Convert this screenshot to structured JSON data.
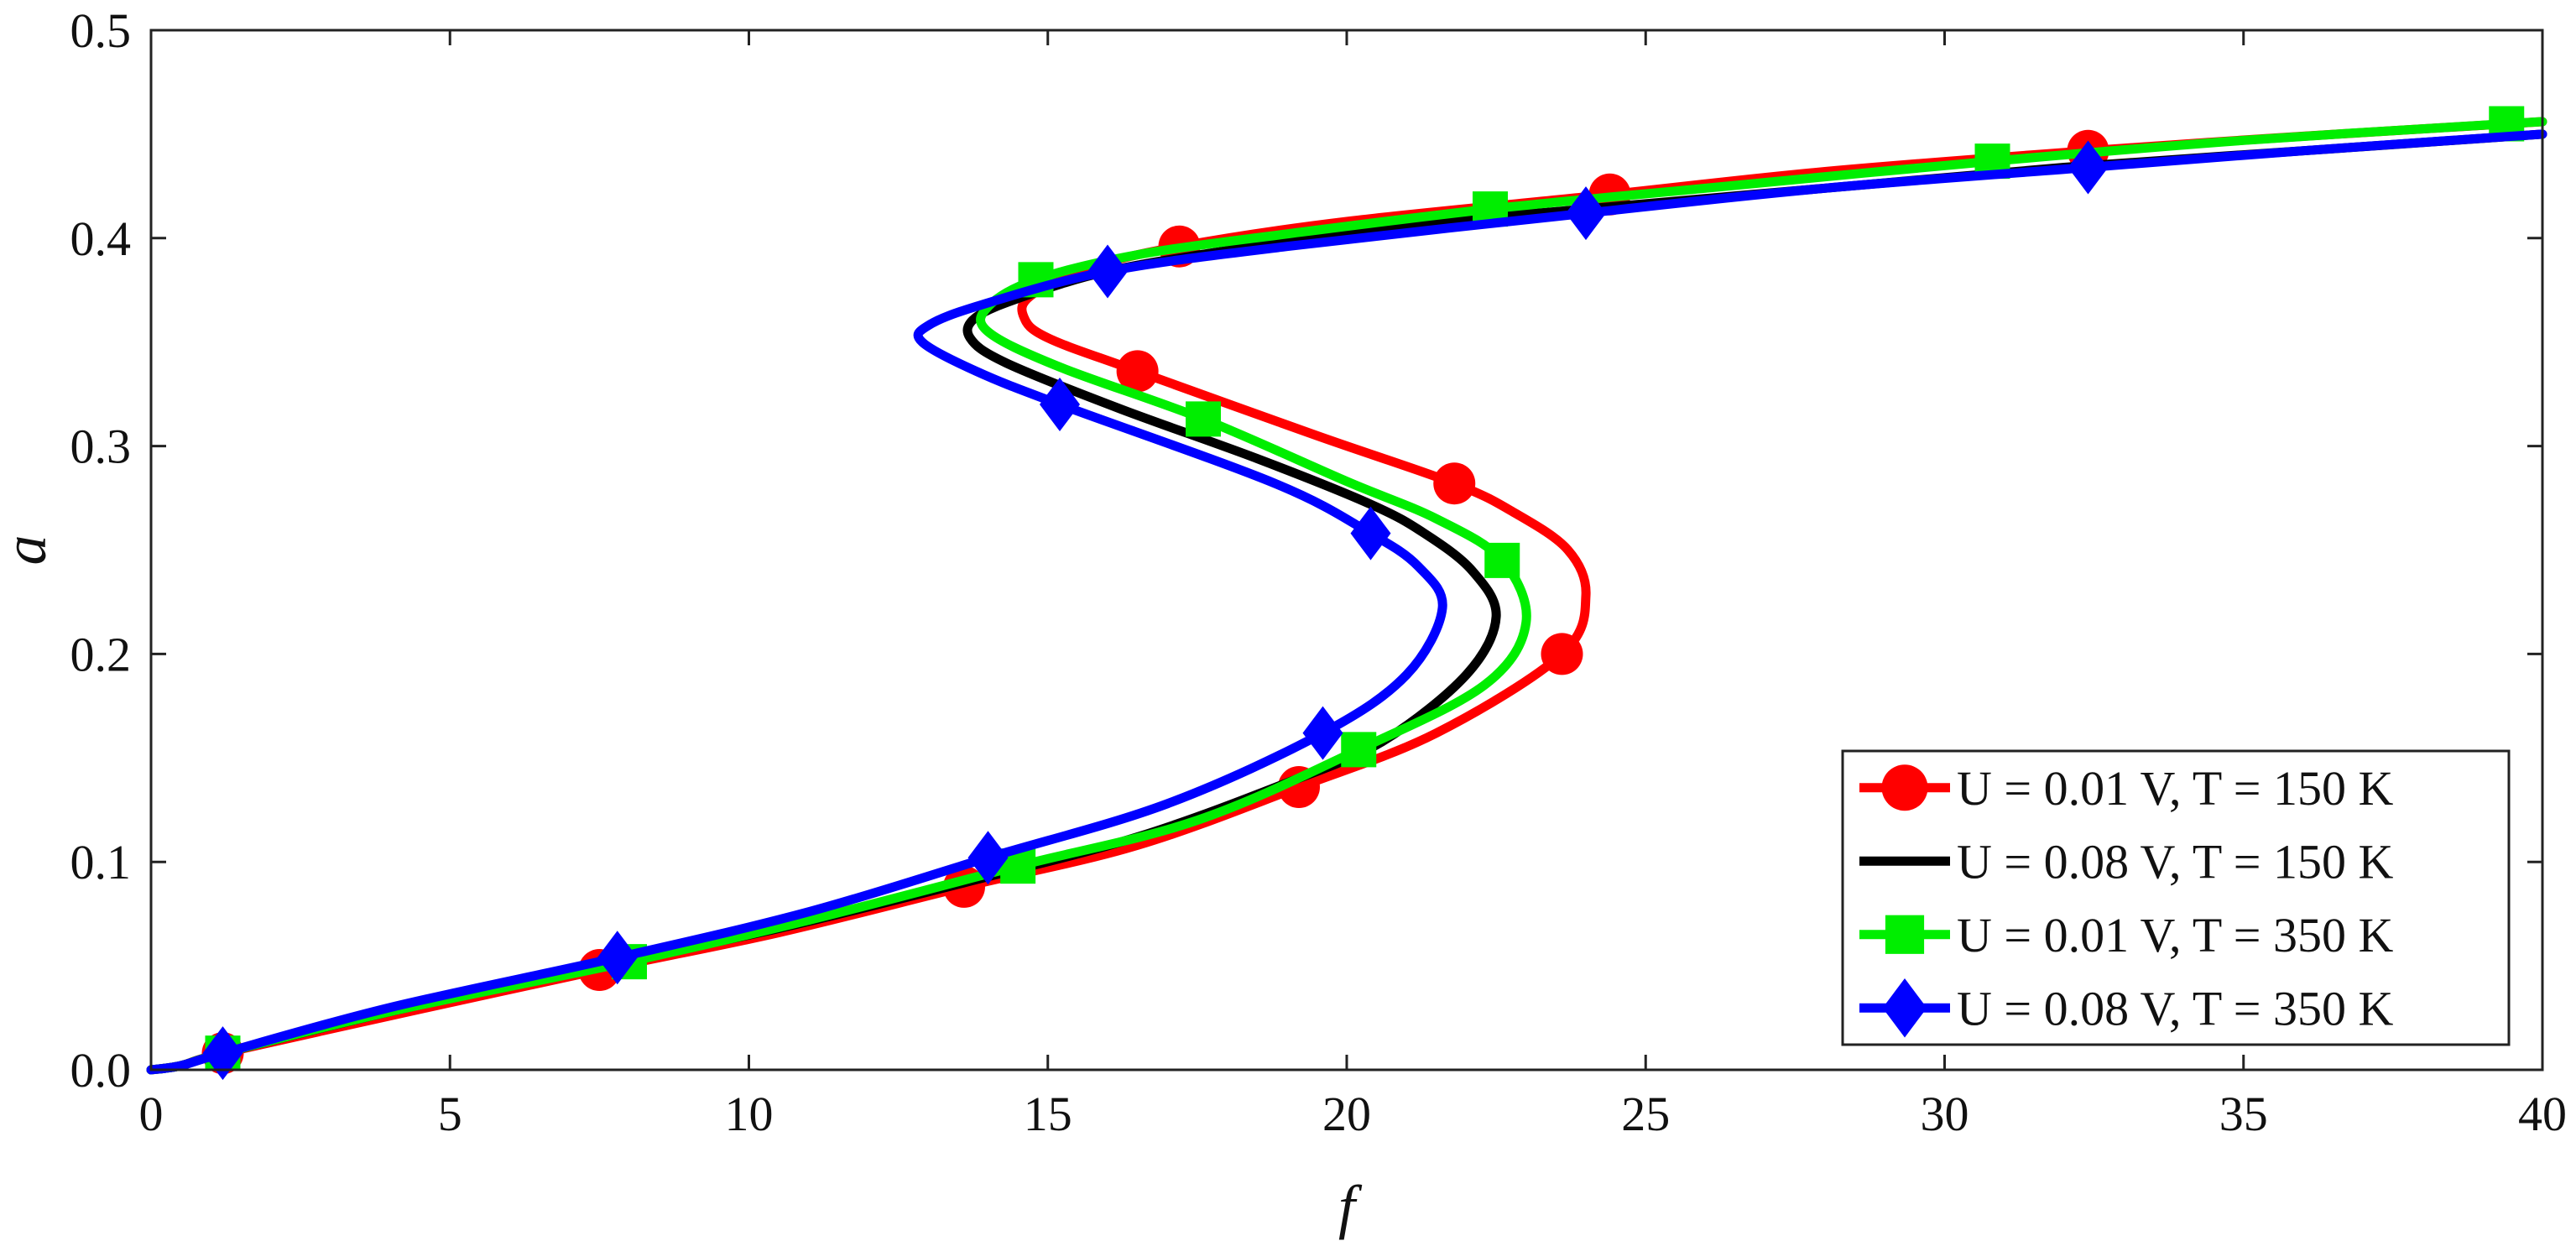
{
  "chart_data": {
    "type": "line",
    "title": "",
    "xlabel": "f",
    "ylabel": "a",
    "xlim": [
      0,
      40
    ],
    "ylim": [
      0,
      0.5
    ],
    "xticks": [
      0,
      5,
      10,
      15,
      20,
      25,
      30,
      35,
      40
    ],
    "yticks": [
      0.0,
      0.1,
      0.2,
      0.3,
      0.4,
      0.5
    ],
    "xtick_labels": [
      "0",
      "5",
      "10",
      "15",
      "20",
      "25",
      "30",
      "35",
      "40"
    ],
    "ytick_labels": [
      "0.0",
      "0.1",
      "0.2",
      "0.3",
      "0.4",
      "0.5"
    ],
    "grid": false,
    "legend_position": "bottom-right",
    "series": [
      {
        "name": "U = 0.01 V, T = 150 K",
        "color": "#ff0000",
        "marker": "circle",
        "points": [
          [
            0,
            0
          ],
          [
            0.5,
            0.002
          ],
          [
            1.2,
            0.008
          ],
          [
            4,
            0.026
          ],
          [
            7.5,
            0.048
          ],
          [
            10.5,
            0.066
          ],
          [
            13.6,
            0.088
          ],
          [
            16.5,
            0.108
          ],
          [
            19.2,
            0.136
          ],
          [
            21.5,
            0.162
          ],
          [
            23.6,
            0.2
          ],
          [
            24.0,
            0.228
          ],
          [
            23.7,
            0.25
          ],
          [
            22.8,
            0.268
          ],
          [
            21.8,
            0.282
          ],
          [
            19.5,
            0.305
          ],
          [
            16.5,
            0.336
          ],
          [
            15.0,
            0.352
          ],
          [
            14.6,
            0.362
          ],
          [
            14.7,
            0.372
          ],
          [
            15.6,
            0.385
          ],
          [
            17.2,
            0.396
          ],
          [
            20,
            0.408
          ],
          [
            24.4,
            0.421
          ],
          [
            28,
            0.432
          ],
          [
            32.4,
            0.442
          ],
          [
            36,
            0.449
          ],
          [
            40,
            0.456
          ]
        ],
        "marker_points": [
          [
            1.2,
            0.008
          ],
          [
            7.5,
            0.048
          ],
          [
            13.6,
            0.088
          ],
          [
            19.2,
            0.136
          ],
          [
            23.6,
            0.2
          ],
          [
            21.8,
            0.282
          ],
          [
            16.5,
            0.336
          ],
          [
            17.2,
            0.396
          ],
          [
            24.4,
            0.421
          ],
          [
            32.4,
            0.442
          ]
        ]
      },
      {
        "name": "U = 0.08 V, T = 150 K",
        "color": "#000000",
        "marker": "none",
        "points": [
          [
            0,
            0
          ],
          [
            0.5,
            0.002
          ],
          [
            1.2,
            0.008
          ],
          [
            4,
            0.028
          ],
          [
            7.5,
            0.05
          ],
          [
            10.5,
            0.068
          ],
          [
            13.6,
            0.09
          ],
          [
            16.5,
            0.112
          ],
          [
            19,
            0.138
          ],
          [
            20.6,
            0.158
          ],
          [
            22.0,
            0.19
          ],
          [
            22.5,
            0.218
          ],
          [
            22.1,
            0.24
          ],
          [
            21.3,
            0.258
          ],
          [
            20.4,
            0.272
          ],
          [
            18.5,
            0.294
          ],
          [
            16.2,
            0.318
          ],
          [
            14.3,
            0.34
          ],
          [
            13.7,
            0.352
          ],
          [
            13.8,
            0.362
          ],
          [
            14.6,
            0.372
          ],
          [
            16.0,
            0.384
          ],
          [
            18,
            0.394
          ],
          [
            21,
            0.406
          ],
          [
            24,
            0.414
          ],
          [
            28,
            0.424
          ],
          [
            32,
            0.434
          ],
          [
            36,
            0.442
          ],
          [
            40,
            0.45
          ]
        ],
        "marker_points": []
      },
      {
        "name": "U = 0.01 V, T = 350 K",
        "color": "#00ee00",
        "marker": "square",
        "points": [
          [
            0,
            0
          ],
          [
            0.5,
            0.002
          ],
          [
            1.2,
            0.008
          ],
          [
            4,
            0.028
          ],
          [
            8,
            0.052
          ],
          [
            11,
            0.072
          ],
          [
            14.5,
            0.098
          ],
          [
            17.5,
            0.12
          ],
          [
            20.2,
            0.154
          ],
          [
            22.3,
            0.185
          ],
          [
            23.0,
            0.215
          ],
          [
            22.6,
            0.245
          ],
          [
            21.5,
            0.265
          ],
          [
            20.0,
            0.283
          ],
          [
            17.6,
            0.313
          ],
          [
            15.2,
            0.338
          ],
          [
            14.0,
            0.355
          ],
          [
            14.0,
            0.367
          ],
          [
            14.8,
            0.38
          ],
          [
            16.5,
            0.392
          ],
          [
            19,
            0.402
          ],
          [
            22.4,
            0.414
          ],
          [
            26,
            0.424
          ],
          [
            30.8,
            0.437
          ],
          [
            35,
            0.447
          ],
          [
            39.4,
            0.455
          ],
          [
            40,
            0.456
          ]
        ],
        "marker_points": [
          [
            1.2,
            0.008
          ],
          [
            8,
            0.052
          ],
          [
            14.5,
            0.098
          ],
          [
            20.2,
            0.154
          ],
          [
            22.6,
            0.245
          ],
          [
            17.6,
            0.313
          ],
          [
            14.8,
            0.38
          ],
          [
            22.4,
            0.414
          ],
          [
            30.8,
            0.437
          ],
          [
            39.4,
            0.455
          ]
        ]
      },
      {
        "name": "U = 0.08 V, T = 350 K",
        "color": "#0000ff",
        "marker": "diamond",
        "points": [
          [
            0,
            0
          ],
          [
            0.5,
            0.002
          ],
          [
            1.2,
            0.008
          ],
          [
            4,
            0.03
          ],
          [
            7.8,
            0.054
          ],
          [
            11,
            0.076
          ],
          [
            14,
            0.102
          ],
          [
            17,
            0.128
          ],
          [
            19.6,
            0.162
          ],
          [
            21.0,
            0.19
          ],
          [
            21.6,
            0.222
          ],
          [
            21.2,
            0.242
          ],
          [
            20.4,
            0.258
          ],
          [
            18.8,
            0.282
          ],
          [
            15.2,
            0.32
          ],
          [
            13.8,
            0.336
          ],
          [
            12.9,
            0.35
          ],
          [
            13.0,
            0.358
          ],
          [
            13.9,
            0.368
          ],
          [
            16.0,
            0.384
          ],
          [
            19,
            0.396
          ],
          [
            24,
            0.412
          ],
          [
            28,
            0.424
          ],
          [
            32.4,
            0.434
          ],
          [
            36,
            0.442
          ],
          [
            40,
            0.45
          ]
        ],
        "marker_points": [
          [
            1.2,
            0.008
          ],
          [
            7.8,
            0.054
          ],
          [
            14,
            0.102
          ],
          [
            19.6,
            0.162
          ],
          [
            20.4,
            0.258
          ],
          [
            15.2,
            0.32
          ],
          [
            16.0,
            0.384
          ],
          [
            24,
            0.412
          ],
          [
            32.4,
            0.434
          ]
        ]
      }
    ]
  }
}
